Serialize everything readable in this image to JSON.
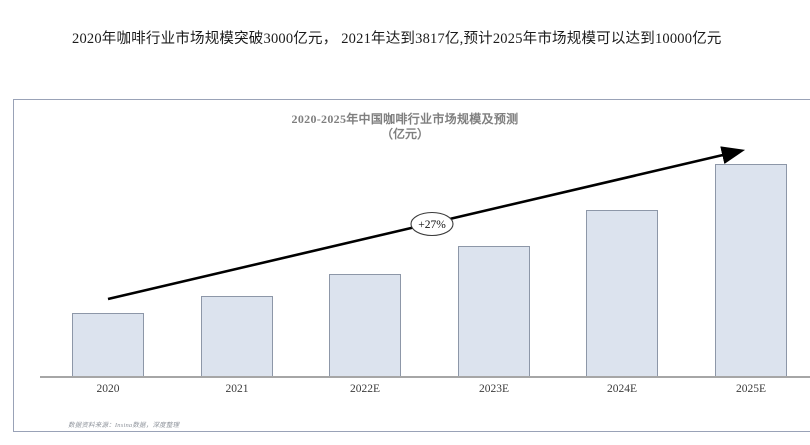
{
  "header": {
    "text": "2020年咖啡行业市场规模突破3000亿元， 2021年达到3817亿,预计2025年市场规模可以达到10000亿元"
  },
  "chart": {
    "title": "2020-2025年中国咖啡行业市场规模及预测",
    "unit_label": "（亿元）",
    "growth_annotation": "+27%",
    "source_note": "数据资料来源：Insina数据，深度整理",
    "colors": {
      "bar_fill": "#dce3ee",
      "bar_border": "#8d97a8",
      "axis_line": "#a6a6a6",
      "panel_border": "#99a2b7",
      "title_text": "#7f7f7f",
      "arrow": "#000000"
    }
  },
  "chart_data": {
    "type": "bar",
    "title": "2020-2025年中国咖啡行业市场规模及预测",
    "subtitle": "（亿元）",
    "unit": "亿元",
    "categories": [
      "2020",
      "2021",
      "2022E",
      "2023E",
      "2024E",
      "2025E"
    ],
    "values": [
      3000,
      3817,
      4850,
      6160,
      7820,
      10000
    ],
    "xlabel": "",
    "ylabel": "亿元",
    "ylim": [
      0,
      10500
    ],
    "grid": false,
    "legend": false,
    "annotation": "+27%"
  }
}
